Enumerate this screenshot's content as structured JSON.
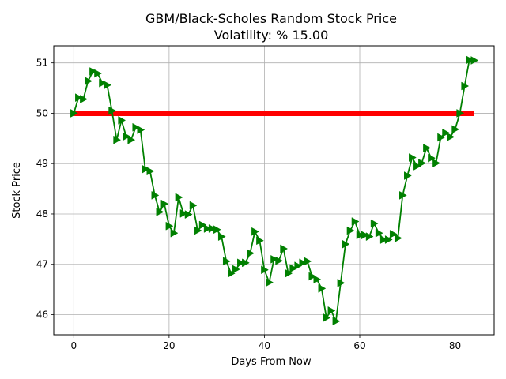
{
  "chart_data": {
    "type": "line",
    "title": "GBM/Black-Scholes Random Stock Price",
    "subtitle": "Volatility: % 15.00",
    "xlabel": "Days From Now",
    "ylabel": "Stock Price",
    "xlim": [
      -4.2,
      88.2
    ],
    "ylim": [
      45.6,
      51.34
    ],
    "xticks": [
      0,
      20,
      40,
      60,
      80
    ],
    "yticks": [
      46,
      47,
      48,
      49,
      50,
      51
    ],
    "grid": true,
    "series": [
      {
        "color": "#008000",
        "marker": "triangle-right",
        "x": [
          0,
          1,
          2,
          3,
          4,
          5,
          6,
          7,
          8,
          9,
          10,
          11,
          12,
          13,
          14,
          15,
          16,
          17,
          18,
          19,
          20,
          21,
          22,
          23,
          24,
          25,
          26,
          27,
          28,
          29,
          30,
          31,
          32,
          33,
          34,
          35,
          36,
          37,
          38,
          39,
          40,
          41,
          42,
          43,
          44,
          45,
          46,
          47,
          48,
          49,
          50,
          51,
          52,
          53,
          54,
          55,
          56,
          57,
          58,
          59,
          60,
          61,
          62,
          63,
          64,
          65,
          66,
          67,
          68,
          69,
          70,
          71,
          72,
          73,
          74,
          75,
          76,
          77,
          78,
          79,
          80,
          81,
          82,
          83,
          84
        ],
        "values": [
          50.0,
          50.31,
          50.28,
          50.64,
          50.83,
          50.79,
          50.6,
          50.56,
          50.05,
          49.47,
          49.86,
          49.54,
          49.47,
          49.72,
          49.67,
          48.89,
          48.85,
          48.37,
          48.04,
          48.2,
          47.76,
          47.62,
          48.33,
          48.01,
          47.99,
          48.17,
          47.67,
          47.78,
          47.71,
          47.71,
          47.69,
          47.55,
          47.06,
          46.82,
          46.9,
          47.03,
          47.03,
          47.22,
          47.65,
          47.47,
          46.89,
          46.64,
          47.1,
          47.07,
          47.31,
          46.82,
          46.92,
          46.97,
          47.03,
          47.06,
          46.76,
          46.7,
          46.52,
          45.94,
          46.08,
          45.87,
          46.63,
          47.4,
          47.67,
          47.85,
          47.58,
          47.58,
          47.55,
          47.81,
          47.62,
          47.49,
          47.49,
          47.6,
          47.52,
          48.37,
          48.76,
          49.12,
          48.95,
          49.01,
          49.31,
          49.11,
          49.01,
          49.52,
          49.61,
          49.53,
          49.68,
          50.0,
          50.54,
          51.06,
          51.05
        ]
      },
      {
        "color": "#ff0000",
        "x": [
          0,
          84
        ],
        "values": [
          50.0,
          50.0
        ]
      }
    ]
  }
}
